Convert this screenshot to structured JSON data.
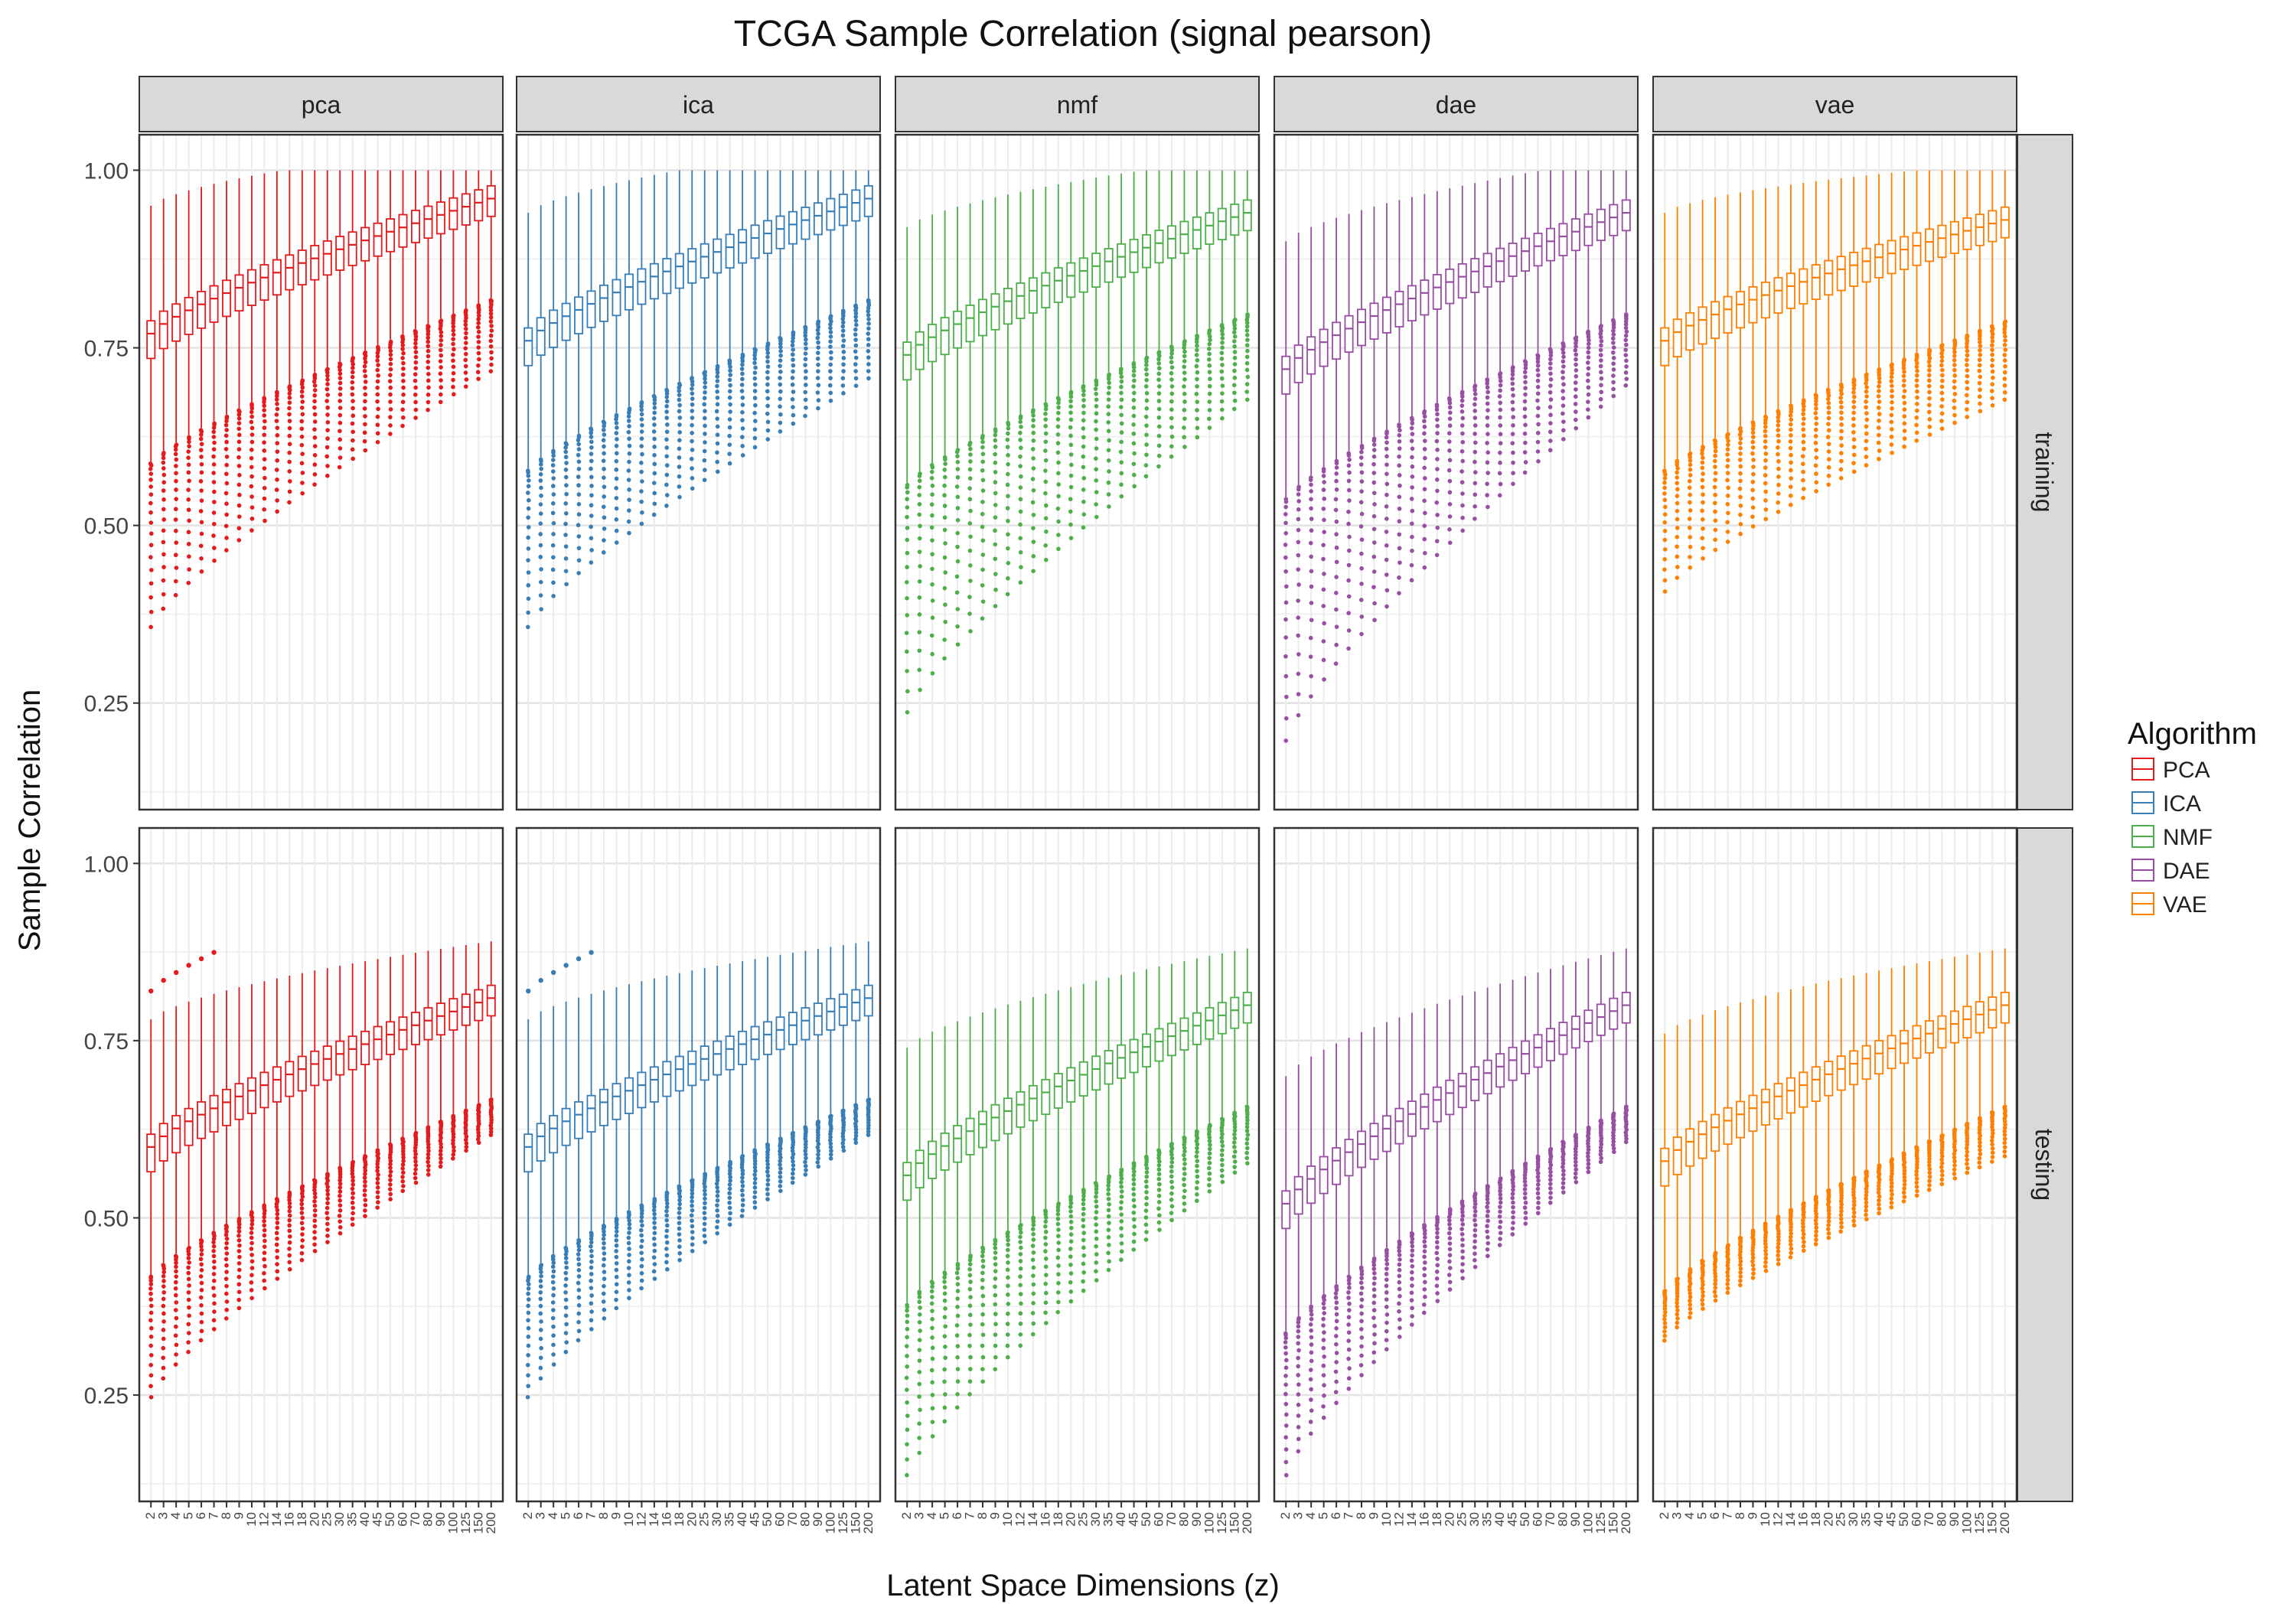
{
  "chart_data": {
    "type": "boxplot",
    "title": "TCGA Sample Correlation (signal pearson)",
    "xlabel": "Latent Space Dimensions (z)",
    "ylabel": "Sample Correlation",
    "ylim": [
      0.1,
      1.05
    ],
    "yticks": [
      0.25,
      0.5,
      0.75,
      1.0
    ],
    "ytick_labels": [
      "0.25",
      "0.50",
      "0.75",
      "1.00"
    ],
    "grid": true,
    "legend": {
      "title": "Algorithm",
      "placement": "right",
      "entries": [
        {
          "label": "PCA",
          "color": "#e41a1c"
        },
        {
          "label": "ICA",
          "color": "#377eb8"
        },
        {
          "label": "NMF",
          "color": "#4daf4a"
        },
        {
          "label": "DAE",
          "color": "#984ea3"
        },
        {
          "label": "VAE",
          "color": "#ff7f00"
        }
      ]
    },
    "x_categories": [
      "2",
      "3",
      "4",
      "5",
      "6",
      "7",
      "8",
      "9",
      "10",
      "12",
      "14",
      "16",
      "18",
      "20",
      "25",
      "30",
      "35",
      "40",
      "45",
      "50",
      "60",
      "70",
      "80",
      "90",
      "100",
      "125",
      "150",
      "200"
    ],
    "columns": [
      {
        "facet": "pca",
        "algorithm": "PCA",
        "color": "#e41a1c"
      },
      {
        "facet": "ica",
        "algorithm": "ICA",
        "color": "#377eb8"
      },
      {
        "facet": "nmf",
        "algorithm": "NMF",
        "color": "#4daf4a"
      },
      {
        "facet": "dae",
        "algorithm": "DAE",
        "color": "#984ea3"
      },
      {
        "facet": "vae",
        "algorithm": "VAE",
        "color": "#ff7f00"
      }
    ],
    "rows": [
      "training",
      "testing"
    ],
    "approximate_medians": {
      "training": {
        "pca": [
          0.77,
          0.96
        ],
        "ica": [
          0.76,
          0.96
        ],
        "nmf": [
          0.74,
          0.94
        ],
        "dae": [
          0.72,
          0.94
        ],
        "vae": [
          0.76,
          0.93
        ]
      },
      "testing": {
        "pca": [
          0.6,
          0.81
        ],
        "ica": [
          0.6,
          0.81
        ],
        "nmf": [
          0.56,
          0.8
        ],
        "dae": [
          0.52,
          0.8
        ],
        "vae": [
          0.58,
          0.8
        ]
      }
    },
    "approximate_min_outliers": {
      "training": {
        "pca": [
          0.36,
          0.72
        ],
        "ica": [
          0.36,
          0.71
        ],
        "nmf": [
          0.24,
          0.68
        ],
        "dae": [
          0.2,
          0.7
        ],
        "vae": [
          0.41,
          0.68
        ]
      },
      "testing": {
        "pca": [
          0.25,
          0.62
        ],
        "ica": [
          0.25,
          0.62
        ],
        "nmf": [
          0.14,
          0.58
        ],
        "dae": [
          0.14,
          0.61
        ],
        "vae": [
          0.33,
          0.59
        ]
      }
    }
  }
}
